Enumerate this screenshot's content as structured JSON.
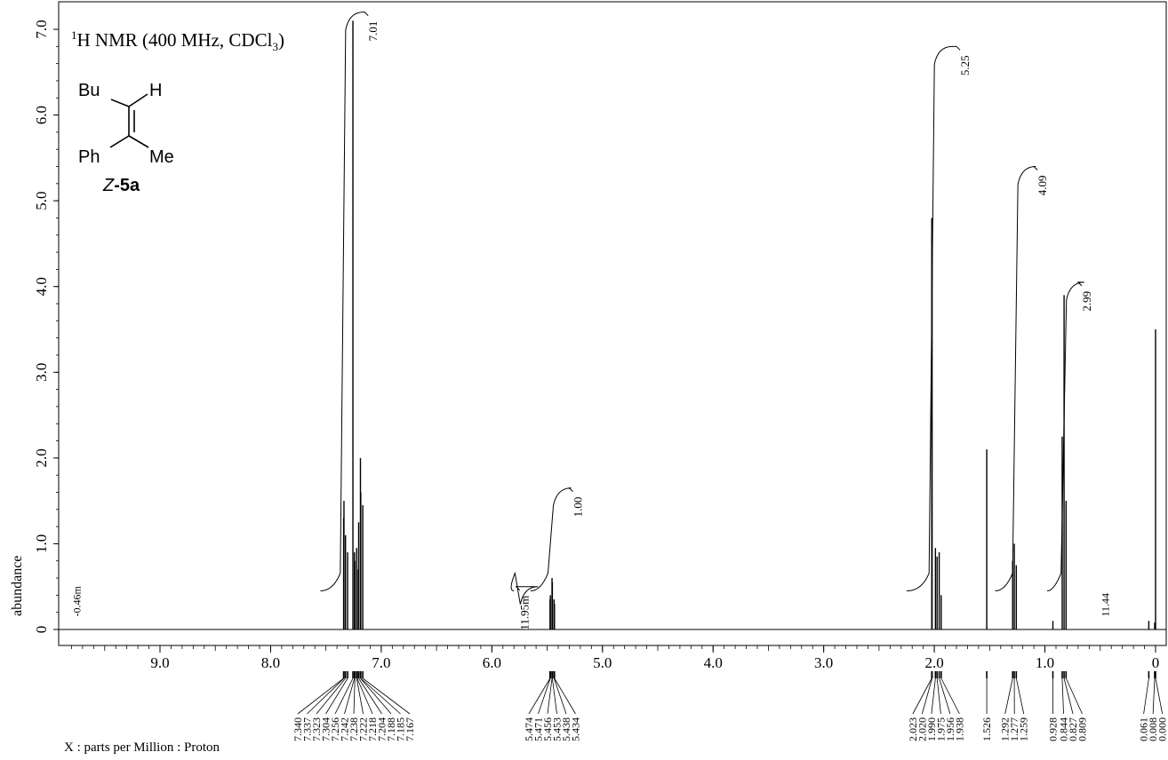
{
  "chart_data": {
    "type": "line",
    "title": "1H NMR (400 MHz, CDCl3)",
    "title_parts": {
      "superscript": "1",
      "before_subscript": "H NMR (400 MHz, CDCl",
      "subscript": "3",
      "after_subscript": ")"
    },
    "xlabel": "X : parts per Million : Proton",
    "ylabel": "abundance",
    "xlim": [
      9.8,
      -0.1
    ],
    "ylim": [
      -0.1,
      7.1
    ],
    "x_reversed": true,
    "x_ticks": [
      "9.0",
      "8.0",
      "7.0",
      "6.0",
      "5.0",
      "4.0",
      "3.0",
      "2.0",
      "1.0",
      "0"
    ],
    "y_ticks": [
      "0",
      "1.0",
      "2.0",
      "3.0",
      "4.0",
      "5.0",
      "6.0",
      "7.0"
    ],
    "grid": false,
    "peaks": [
      {
        "ppm": 7.34,
        "height": 1.3
      },
      {
        "ppm": 7.337,
        "height": 1.5
      },
      {
        "ppm": 7.323,
        "height": 1.1
      },
      {
        "ppm": 7.304,
        "height": 0.9
      },
      {
        "ppm": 7.256,
        "height": 7.1
      },
      {
        "ppm": 7.242,
        "height": 0.9
      },
      {
        "ppm": 7.238,
        "height": 0.8
      },
      {
        "ppm": 7.222,
        "height": 0.95
      },
      {
        "ppm": 7.218,
        "height": 0.7
      },
      {
        "ppm": 7.204,
        "height": 1.25
      },
      {
        "ppm": 7.188,
        "height": 2.0
      },
      {
        "ppm": 7.185,
        "height": 1.6
      },
      {
        "ppm": 7.167,
        "height": 1.45
      },
      {
        "ppm": 5.474,
        "height": 0.35
      },
      {
        "ppm": 5.471,
        "height": 0.4
      },
      {
        "ppm": 5.456,
        "height": 0.6
      },
      {
        "ppm": 5.453,
        "height": 0.55
      },
      {
        "ppm": 5.438,
        "height": 0.35
      },
      {
        "ppm": 5.434,
        "height": 0.3
      },
      {
        "ppm": 2.023,
        "height": 4.8
      },
      {
        "ppm": 2.02,
        "height": 4.6
      },
      {
        "ppm": 1.99,
        "height": 0.95
      },
      {
        "ppm": 1.975,
        "height": 0.85
      },
      {
        "ppm": 1.956,
        "height": 0.9
      },
      {
        "ppm": 1.938,
        "height": 0.4
      },
      {
        "ppm": 1.526,
        "height": 2.1
      },
      {
        "ppm": 1.292,
        "height": 0.8
      },
      {
        "ppm": 1.277,
        "height": 1.0
      },
      {
        "ppm": 1.259,
        "height": 0.75
      },
      {
        "ppm": 0.928,
        "height": 0.1
      },
      {
        "ppm": 0.844,
        "height": 2.25
      },
      {
        "ppm": 0.827,
        "height": 3.9
      },
      {
        "ppm": 0.809,
        "height": 1.5
      },
      {
        "ppm": 0.061,
        "height": 0.1
      },
      {
        "ppm": 0.008,
        "height": 0.08
      },
      {
        "ppm": 0.0,
        "height": 3.5
      }
    ],
    "integrals": [
      {
        "label": "7.01",
        "from": 7.55,
        "to": 7.15,
        "base": 0.45,
        "top": 7.2
      },
      {
        "label": "11.95m",
        "from": 5.8,
        "to": 5.78,
        "base": 0.45,
        "top": 0.5
      },
      {
        "label": "1.00",
        "from": 5.65,
        "to": 5.3,
        "base": 0.45,
        "top": 1.65
      },
      {
        "label": "5.25",
        "from": 2.25,
        "to": 1.8,
        "base": 0.45,
        "top": 6.8
      },
      {
        "label": "4.09",
        "from": 1.45,
        "to": 1.1,
        "base": 0.45,
        "top": 5.4
      },
      {
        "label": "2.99",
        "from": 0.98,
        "to": 0.7,
        "base": 0.45,
        "top": 4.05
      }
    ],
    "annotations": [
      {
        "text": "-0.46m",
        "ppm": 9.72,
        "y": 0.15
      },
      {
        "text": "11.44",
        "ppm": 0.42,
        "y": 0.15
      }
    ],
    "peak_label_groups": [
      {
        "labels": [
          "7.340",
          "7.337",
          "7.323",
          "7.304",
          "7.256",
          "7.242",
          "7.238",
          "7.222",
          "7.218",
          "7.204",
          "7.188",
          "7.185",
          "7.167"
        ]
      },
      {
        "labels": [
          "5.474",
          "5.471",
          "5.456",
          "5.453",
          "5.438",
          "5.434"
        ]
      },
      {
        "labels": [
          "2.023",
          "2.020",
          "1.990",
          "1.975",
          "1.956",
          "1.938"
        ]
      },
      {
        "labels": [
          "1.526"
        ]
      },
      {
        "labels": [
          "1.292",
          "1.277",
          "1.259"
        ]
      },
      {
        "labels": [
          "0.928"
        ]
      },
      {
        "labels": [
          "0.844",
          "0.827",
          "0.809"
        ]
      },
      {
        "labels": [
          "0.061",
          "0.008",
          "0.000"
        ]
      }
    ],
    "structure": {
      "labels": [
        "Bu",
        "H",
        "Ph",
        "Me"
      ],
      "compound_prefix": "Z",
      "compound_suffix": "-5a"
    }
  }
}
